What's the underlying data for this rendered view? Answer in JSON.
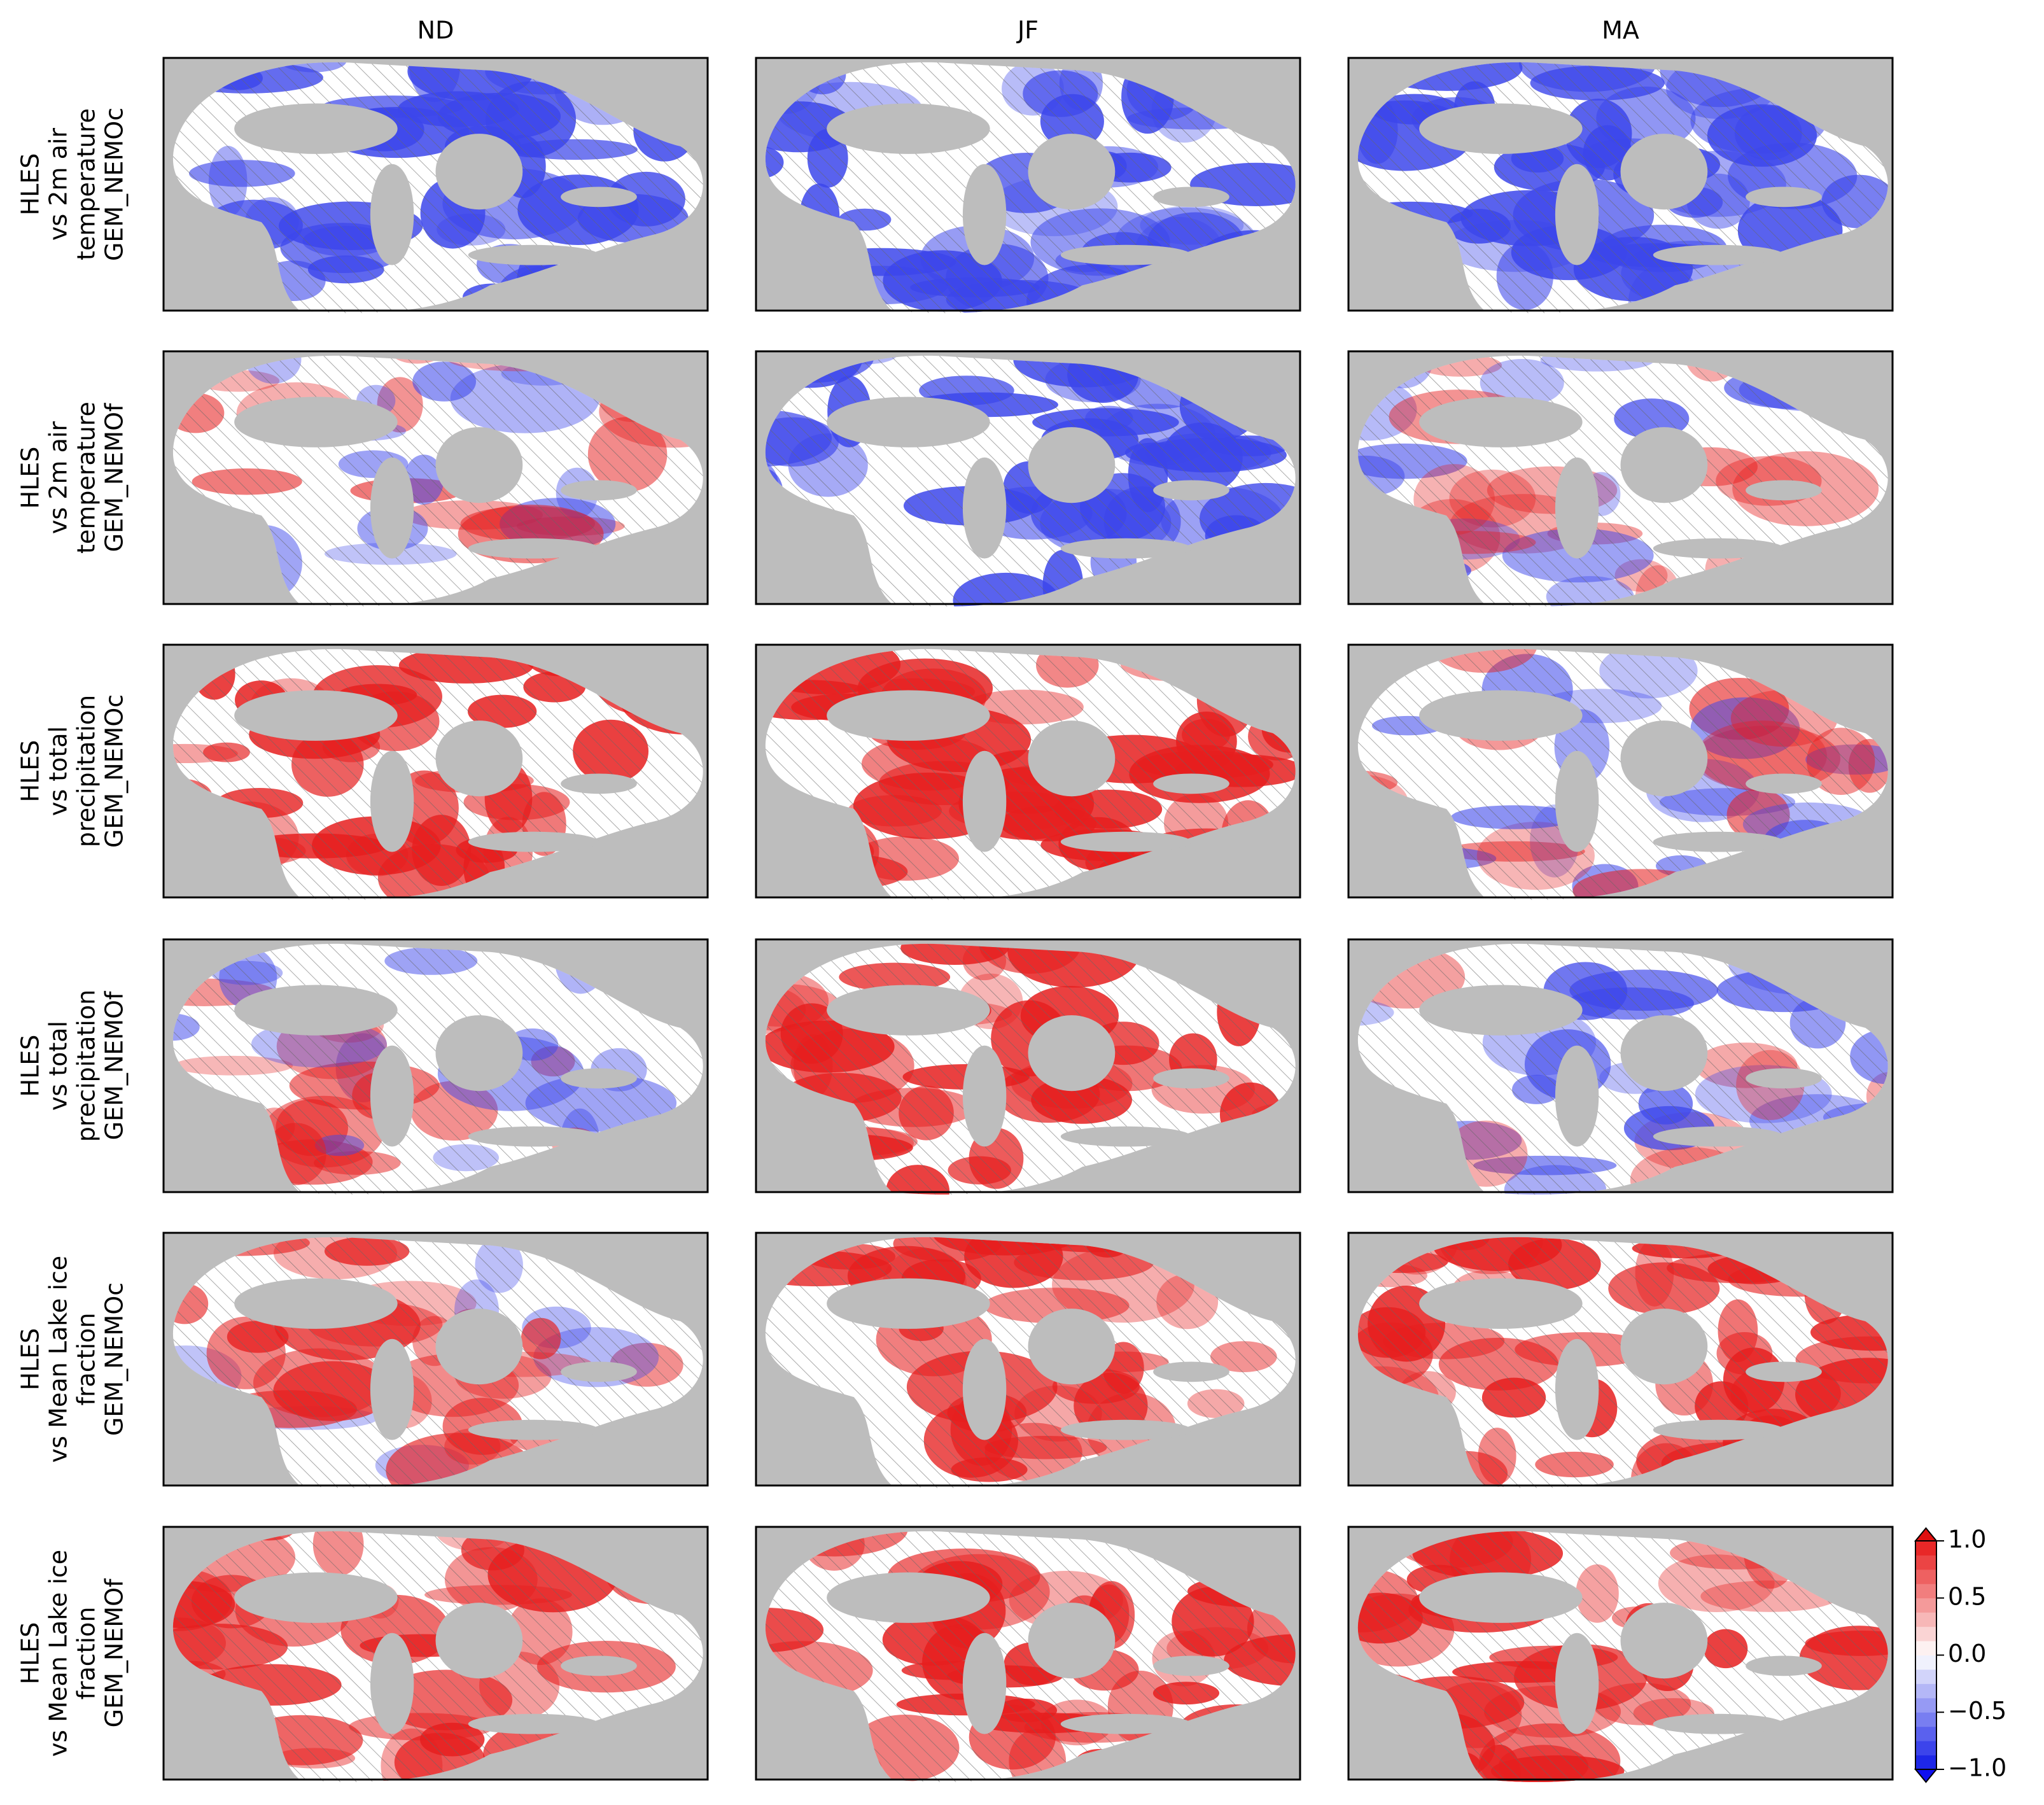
{
  "columns": [
    "ND",
    "JF",
    "MA"
  ],
  "rows": [
    {
      "lines": [
        "HLES",
        "vs 2m air",
        "temperature",
        "GEM_NEMOc"
      ]
    },
    {
      "lines": [
        "HLES",
        "vs 2m air",
        "temperature",
        "GEM_NEMOf"
      ]
    },
    {
      "lines": [
        "HLES",
        "vs total",
        "precipitation",
        "GEM_NEMOc"
      ]
    },
    {
      "lines": [
        "HLES",
        "vs total",
        "precipitation",
        "GEM_NEMOf"
      ]
    },
    {
      "lines": [
        "HLES",
        "vs Mean Lake ice",
        "fraction",
        "GEM_NEMOc"
      ]
    },
    {
      "lines": [
        "HLES",
        "vs Mean Lake ice",
        "fraction",
        "GEM_NEMOf"
      ]
    }
  ],
  "colorbar": {
    "ticks": [
      {
        "value": 1.0,
        "label": "1.0"
      },
      {
        "value": 0.5,
        "label": "0.5"
      },
      {
        "value": 0.0,
        "label": "0.0"
      },
      {
        "value": -0.5,
        "label": "−0.5"
      },
      {
        "value": -1.0,
        "label": "−1.0"
      }
    ]
  }
}
